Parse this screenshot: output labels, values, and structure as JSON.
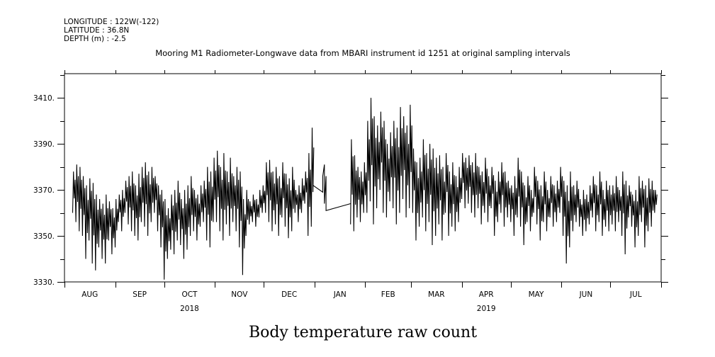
{
  "header": {
    "longitude": "LONGITUDE : 122W(-122)",
    "latitude": "LATITUDE : 36.8N",
    "depth": "DEPTH (m) : -2.5"
  },
  "chart_data": {
    "type": "line",
    "title": "Mooring M1 Radiometer-Longwave data from MBARI instrument id 1251 at original sampling intervals",
    "xlabel": "",
    "ylabel": "Body temperature raw count",
    "ylim": [
      3330,
      3420.5
    ],
    "yticks": [
      3330,
      3350,
      3370,
      3390,
      3410
    ],
    "ytick_labels": [
      "3330.",
      "3350.",
      "3370.",
      "3390.",
      "3410."
    ],
    "yminor_step": 10,
    "x_units": "days since 2018-08-01",
    "xlim": [
      0,
      365
    ],
    "months": [
      {
        "label": "AUG",
        "start": 0
      },
      {
        "label": "SEP",
        "start": 31
      },
      {
        "label": "OCT",
        "start": 61
      },
      {
        "label": "NOV",
        "start": 92
      },
      {
        "label": "DEC",
        "start": 122
      },
      {
        "label": "JAN",
        "start": 153
      },
      {
        "label": "FEB",
        "start": 184
      },
      {
        "label": "MAR",
        "start": 212
      },
      {
        "label": "APR",
        "start": 243
      },
      {
        "label": "MAY",
        "start": 273
      },
      {
        "label": "JUN",
        "start": 304
      },
      {
        "label": "JUL",
        "start": 334
      }
    ],
    "month_end": 365,
    "years": [
      {
        "label": "2018",
        "under_month": 2
      },
      {
        "label": "2019",
        "under_month": 8
      }
    ],
    "grid": false,
    "series": [
      {
        "name": "segment-1",
        "start_day": 5,
        "step_days": 2,
        "hi": [
          3378,
          3381,
          3380,
          3376,
          3372,
          3375,
          3373,
          3368,
          3366,
          3364,
          3368,
          3365,
          3362,
          3366,
          3368,
          3370,
          3374,
          3376,
          3378,
          3372,
          3377,
          3380,
          3382,
          3378,
          3380,
          3376,
          3372,
          3370,
          3366,
          3362,
          3368,
          3370,
          3374,
          3366,
          3370,
          3372,
          3376,
          3370,
          3368,
          3372,
          3374,
          3380,
          3378,
          3384,
          3387,
          3380,
          3386,
          3378,
          3384,
          3376,
          3380,
          3378,
          3366,
          3370,
          3365,
          3368,
          3366,
          3370,
          3372,
          3382,
          3383,
          3378,
          3380,
          3376,
          3382,
          3377,
          3375,
          3380,
          3370,
          3372,
          3375,
          3378,
          3386,
          3397
        ],
        "lo": [
          3360,
          3356,
          3352,
          3350,
          3340,
          3348,
          3338,
          3335,
          3345,
          3340,
          3338,
          3348,
          3342,
          3345,
          3356,
          3352,
          3360,
          3355,
          3352,
          3350,
          3348,
          3356,
          3354,
          3350,
          3356,
          3360,
          3352,
          3345,
          3331,
          3340,
          3344,
          3342,
          3348,
          3346,
          3340,
          3344,
          3350,
          3352,
          3348,
          3354,
          3356,
          3348,
          3345,
          3356,
          3356,
          3352,
          3348,
          3355,
          3350,
          3356,
          3352,
          3345,
          3333,
          3350,
          3355,
          3356,
          3354,
          3358,
          3360,
          3360,
          3356,
          3352,
          3355,
          3350,
          3358,
          3354,
          3349,
          3352,
          3360,
          3356,
          3360,
          3364,
          3350,
          3354
        ]
      },
      {
        "name": "gap-connector",
        "points": [
          [
            152,
            3372
          ],
          [
            158,
            3369
          ],
          [
            158,
            3376
          ],
          [
            159,
            3381
          ],
          [
            159,
            3364
          ],
          [
            160,
            3376
          ],
          [
            160,
            3361
          ],
          [
            175,
            3364
          ]
        ]
      },
      {
        "name": "segment-2",
        "start_day": 175,
        "step_days": 2,
        "hi": [
          3392,
          3385,
          3380,
          3378,
          3382,
          3400,
          3410,
          3402,
          3398,
          3404,
          3400,
          3390,
          3395,
          3400,
          3397,
          3406,
          3402,
          3398,
          3407,
          3388,
          3382,
          3384,
          3392,
          3386,
          3390,
          3388,
          3384,
          3385,
          3380,
          3386,
          3378,
          3382,
          3376,
          3380,
          3386,
          3384,
          3385,
          3382,
          3386,
          3380,
          3378,
          3384,
          3376,
          3380,
          3374,
          3378,
          3382,
          3378,
          3374,
          3372,
          3376,
          3384,
          3378,
          3372,
          3376,
          3370,
          3380,
          3374,
          3372,
          3378,
          3370,
          3376,
          3372,
          3374,
          3380,
          3374,
          3372,
          3378,
          3372,
          3374,
          3366,
          3370,
          3368,
          3372,
          3376,
          3372,
          3378,
          3370,
          3374,
          3372,
          3372,
          3376,
          3370,
          3378,
          3374,
          3372,
          3368,
          3370,
          3376,
          3374,
          3372,
          3375,
          3374,
          3370
        ],
        "lo": [
          3355,
          3352,
          3358,
          3356,
          3360,
          3360,
          3365,
          3355,
          3362,
          3370,
          3360,
          3358,
          3365,
          3362,
          3355,
          3360,
          3366,
          3358,
          3362,
          3360,
          3348,
          3354,
          3358,
          3352,
          3356,
          3346,
          3350,
          3355,
          3348,
          3360,
          3350,
          3354,
          3352,
          3356,
          3366,
          3362,
          3364,
          3360,
          3358,
          3362,
          3355,
          3360,
          3356,
          3362,
          3350,
          3356,
          3360,
          3354,
          3358,
          3356,
          3350,
          3358,
          3354,
          3346,
          3356,
          3352,
          3360,
          3355,
          3348,
          3356,
          3352,
          3358,
          3354,
          3356,
          3360,
          3350,
          3338,
          3345,
          3352,
          3356,
          3354,
          3350,
          3352,
          3355,
          3358,
          3352,
          3356,
          3350,
          3354,
          3352,
          3355,
          3352,
          3356,
          3350,
          3342,
          3358,
          3354,
          3345,
          3350,
          3356,
          3345,
          3352,
          3354,
          3360
        ]
      }
    ]
  }
}
